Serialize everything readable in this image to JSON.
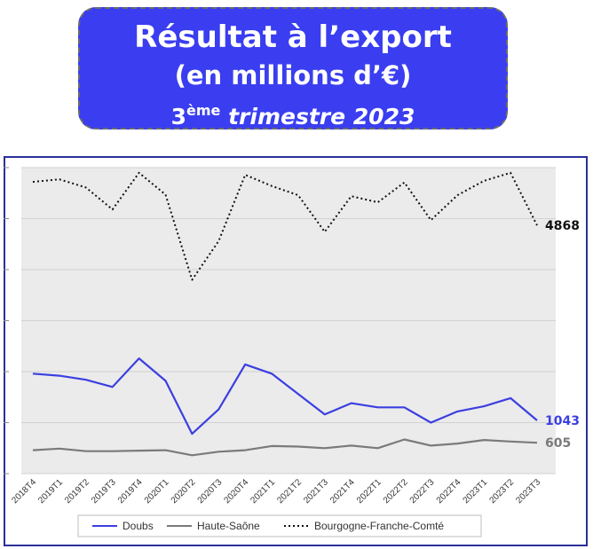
{
  "header": {
    "line1": "Résultat à l’export",
    "line2": "(en millions d’€)",
    "line3_num": "3",
    "line3_sup": "ème",
    "line3_rest": "trimestre 2023"
  },
  "chart_data": {
    "type": "line",
    "title": "",
    "xlabel": "",
    "ylabel": "",
    "categories": [
      "2018T4",
      "2019T1",
      "2019T2",
      "2019T3",
      "2019T4",
      "2020T1",
      "2020T2",
      "2020T3",
      "2020T4",
      "2021T1",
      "2021T2",
      "2021T3",
      "2021T4",
      "2022T1",
      "2022T2",
      "2022T3",
      "2022T4",
      "2023T1",
      "2023T2",
      "2023T3"
    ],
    "ylim": [
      0,
      6000
    ],
    "grid": true,
    "legend_position": "bottom",
    "series": [
      {
        "name": "Doubs",
        "color": "#3b3fe0",
        "style": "solid",
        "values": [
          1960,
          1920,
          1840,
          1700,
          2260,
          1820,
          780,
          1260,
          2140,
          1960,
          1560,
          1160,
          1380,
          1300,
          1300,
          1000,
          1220,
          1320,
          1480,
          1043
        ],
        "end_label": "1043"
      },
      {
        "name": "Haute-Saône",
        "color": "#7a7a7a",
        "style": "solid",
        "values": [
          460,
          490,
          440,
          440,
          450,
          460,
          360,
          430,
          460,
          540,
          530,
          500,
          550,
          500,
          670,
          550,
          590,
          660,
          630,
          605
        ],
        "end_label": "605"
      },
      {
        "name": "Bourgogne-Franche-Comté",
        "color": "#111111",
        "style": "dotted",
        "values": [
          5720,
          5770,
          5610,
          5180,
          5900,
          5470,
          3800,
          4560,
          5860,
          5640,
          5460,
          4740,
          5440,
          5320,
          5710,
          4970,
          5460,
          5740,
          5900,
          4868
        ],
        "end_label": "4868"
      }
    ]
  }
}
